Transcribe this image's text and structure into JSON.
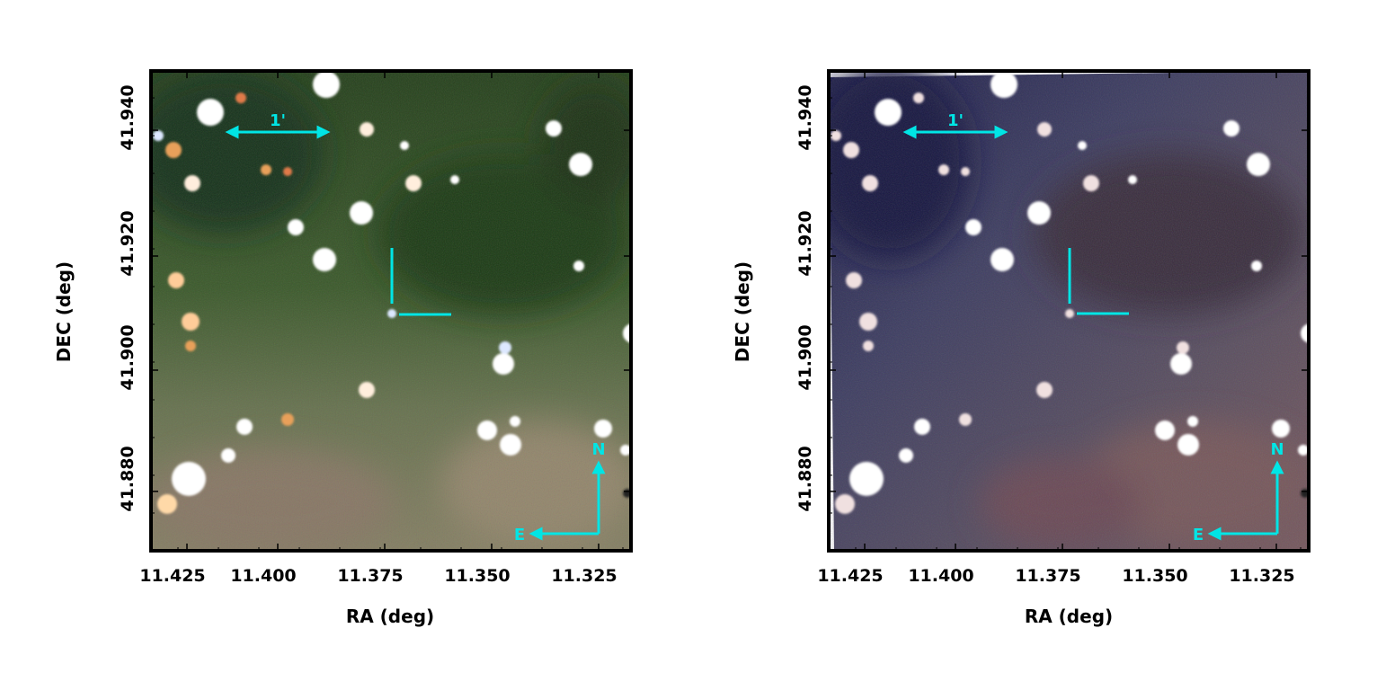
{
  "panels": [
    {
      "id": "left",
      "scheme": "green",
      "colors": {
        "base": "#3f5a2c",
        "dark": "#1e3a16",
        "lower": "#7a7a60",
        "accent": "#c28a5a"
      },
      "xlabel": "RA (deg)",
      "ylabel": "DEC (deg)",
      "xticks": [
        "11.425",
        "11.400",
        "11.375",
        "11.350",
        "11.325"
      ],
      "yticks": [
        "41.940",
        "41.920",
        "41.900",
        "41.880"
      ],
      "scale_label": "1'",
      "compass": {
        "north": "N",
        "east": "E"
      }
    },
    {
      "id": "right",
      "scheme": "purple",
      "colors": {
        "base": "#4a4a6a",
        "dark": "#1e1e46",
        "lower": "#6e5a66",
        "accent": "#7a4a44"
      },
      "xlabel": "RA (deg)",
      "ylabel": "DEC (deg)",
      "xticks": [
        "11.425",
        "11.400",
        "11.375",
        "11.350",
        "11.325"
      ],
      "yticks": [
        "41.940",
        "41.920",
        "41.900",
        "41.880"
      ],
      "scale_label": "1'",
      "compass": {
        "north": "N",
        "east": "E"
      }
    }
  ],
  "overlay_color": "#00e5e5",
  "frame_color": "#000000"
}
